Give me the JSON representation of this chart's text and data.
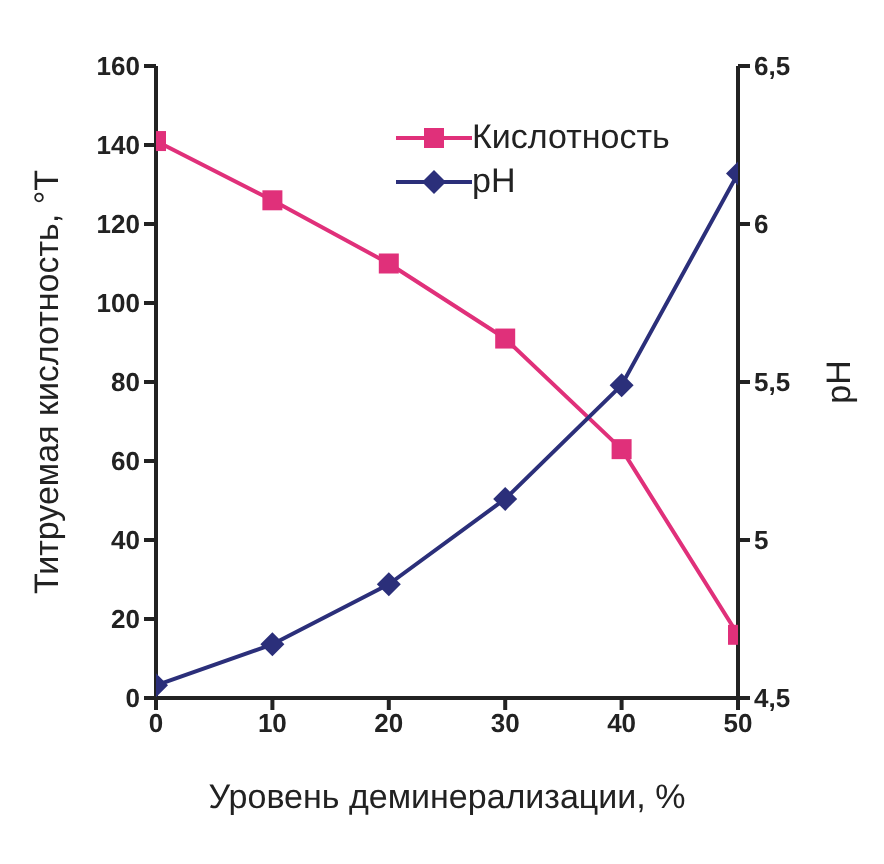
{
  "chart_data": {
    "type": "line",
    "xlabel": "Уровень деминерализации, %",
    "ylabel": "Титруемая кислотность, °Т",
    "y2label": "pH",
    "x": [
      0,
      10,
      20,
      30,
      40,
      50
    ],
    "xlim": [
      0,
      50
    ],
    "xticks": [
      0,
      10,
      20,
      30,
      40,
      50
    ],
    "ylim": [
      0,
      160
    ],
    "yticks": [
      0,
      20,
      40,
      60,
      80,
      100,
      120,
      140,
      160
    ],
    "y2lim": [
      4.5,
      6.5
    ],
    "y2ticks": [
      {
        "value": 4.5,
        "label": "4,5"
      },
      {
        "value": 5,
        "label": "5"
      },
      {
        "value": 5.5,
        "label": "5,5"
      },
      {
        "value": 6,
        "label": "6"
      },
      {
        "value": 6.5,
        "label": "6,5"
      }
    ],
    "legend": "top right",
    "line_style": "solid",
    "series": [
      {
        "name": "Кислотность",
        "color": "#e0307a",
        "marker": "square",
        "values": [
          141,
          126,
          110,
          91,
          63,
          16
        ]
      },
      {
        "name": "pH",
        "color": "#2b2f7a",
        "marker": "diamond",
        "axis": "y2",
        "values": [
          4.54,
          4.67,
          4.86,
          5.13,
          5.49,
          6.16
        ]
      }
    ]
  }
}
